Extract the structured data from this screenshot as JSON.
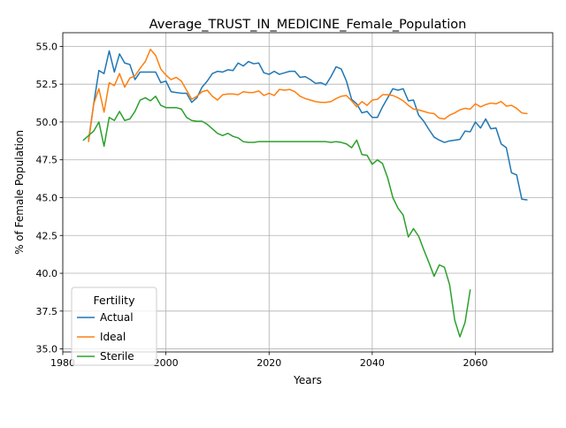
{
  "chart_data": {
    "type": "line",
    "title": "Average_TRUST_IN_MEDICINE_Female_Population",
    "xlabel": "Years",
    "ylabel": "% of Female Population",
    "xlim": [
      1980,
      2075
    ],
    "ylim": [
      34.8,
      55.9
    ],
    "xticks": [
      1980,
      2000,
      2020,
      2040,
      2060
    ],
    "yticks": [
      35.0,
      37.5,
      40.0,
      42.5,
      45.0,
      47.5,
      50.0,
      52.5,
      55.0
    ],
    "xtick_labels": [
      "1980",
      "2000",
      "2020",
      "2040",
      "2060"
    ],
    "ytick_labels": [
      "35.0",
      "37.5",
      "40.0",
      "42.5",
      "45.0",
      "47.5",
      "50.0",
      "52.5",
      "55.0"
    ],
    "grid": true,
    "legend": {
      "title": "Fertility",
      "placement": "lower-left"
    },
    "series": [
      {
        "name": "Actual",
        "color": "#1f77b4",
        "x": [
          1985,
          1986,
          1987,
          1988,
          1989,
          1990,
          1991,
          1992,
          1993,
          1994,
          1995,
          1996,
          1997,
          1998,
          1999,
          2000,
          2001,
          2002,
          2003,
          2004,
          2005,
          2006,
          2007,
          2008,
          2009,
          2010,
          2011,
          2012,
          2013,
          2014,
          2015,
          2016,
          2017,
          2018,
          2019,
          2020,
          2021,
          2022,
          2023,
          2024,
          2025,
          2026,
          2027,
          2028,
          2029,
          2030,
          2031,
          2032,
          2033,
          2034,
          2035,
          2036,
          2037,
          2038,
          2039,
          2040,
          2041,
          2042,
          2043,
          2044,
          2045,
          2046,
          2047,
          2048,
          2049,
          2050,
          2051,
          2052,
          2053,
          2054,
          2055,
          2056,
          2057,
          2058,
          2059,
          2060,
          2061,
          2062,
          2063,
          2064,
          2065,
          2066,
          2067,
          2068,
          2069,
          2070
        ],
        "values": [
          48.8,
          51.2,
          53.4,
          53.2,
          54.7,
          53.3,
          54.5,
          53.9,
          53.8,
          52.8,
          53.3,
          53.3,
          53.3,
          53.3,
          52.6,
          52.7,
          52.0,
          51.95,
          51.9,
          51.9,
          51.3,
          51.6,
          52.3,
          52.7,
          53.2,
          53.35,
          53.3,
          53.45,
          53.4,
          53.9,
          53.7,
          54.0,
          53.85,
          53.9,
          53.25,
          53.15,
          53.35,
          53.15,
          53.25,
          53.35,
          53.35,
          52.95,
          53.0,
          52.8,
          52.55,
          52.6,
          52.45,
          53.0,
          53.65,
          53.5,
          52.7,
          51.5,
          51.2,
          50.6,
          50.7,
          50.3,
          50.3,
          51.0,
          51.6,
          52.2,
          52.1,
          52.2,
          51.4,
          51.45,
          50.45,
          50.05,
          49.5,
          49.0,
          48.8,
          48.65,
          48.75,
          48.8,
          48.85,
          49.4,
          49.35,
          50.0,
          49.6,
          50.2,
          49.55,
          49.6,
          48.55,
          48.3,
          46.65,
          46.5,
          44.9,
          44.85
        ]
      },
      {
        "name": "Ideal",
        "color": "#ff7f0e",
        "x": [
          1985,
          1986,
          1987,
          1988,
          1989,
          1990,
          1991,
          1992,
          1993,
          1994,
          1995,
          1996,
          1997,
          1998,
          1999,
          2000,
          2001,
          2002,
          2003,
          2004,
          2005,
          2006,
          2007,
          2008,
          2009,
          2010,
          2011,
          2012,
          2013,
          2014,
          2015,
          2016,
          2017,
          2018,
          2019,
          2020,
          2021,
          2022,
          2023,
          2024,
          2025,
          2026,
          2027,
          2028,
          2029,
          2030,
          2031,
          2032,
          2033,
          2034,
          2035,
          2036,
          2037,
          2038,
          2039,
          2040,
          2041,
          2042,
          2043,
          2044,
          2045,
          2046,
          2047,
          2048,
          2049,
          2050,
          2051,
          2052,
          2053,
          2054,
          2055,
          2056,
          2057,
          2058,
          2059,
          2060,
          2061,
          2062,
          2063,
          2064,
          2065,
          2066,
          2067,
          2068,
          2069,
          2070
        ],
        "values": [
          48.7,
          51.2,
          52.2,
          50.65,
          52.6,
          52.4,
          53.2,
          52.3,
          52.9,
          53.05,
          53.55,
          54.0,
          54.8,
          54.4,
          53.5,
          53.1,
          52.8,
          52.95,
          52.7,
          52.1,
          51.5,
          51.7,
          52.0,
          52.1,
          51.7,
          51.45,
          51.8,
          51.85,
          51.85,
          51.8,
          52.0,
          51.95,
          51.95,
          52.05,
          51.75,
          51.9,
          51.75,
          52.15,
          52.1,
          52.15,
          52.0,
          51.7,
          51.55,
          51.45,
          51.35,
          51.3,
          51.3,
          51.35,
          51.55,
          51.7,
          51.75,
          51.4,
          51.0,
          51.35,
          51.1,
          51.45,
          51.5,
          51.8,
          51.8,
          51.75,
          51.6,
          51.4,
          51.1,
          50.85,
          50.8,
          50.7,
          50.6,
          50.55,
          50.25,
          50.2,
          50.45,
          50.6,
          50.8,
          50.9,
          50.85,
          51.2,
          51.0,
          51.15,
          51.25,
          51.2,
          51.35,
          51.05,
          51.1,
          50.9,
          50.6,
          50.55
        ]
      },
      {
        "name": "Sterile",
        "color": "#2ca02c",
        "x": [
          1984,
          1985,
          1986,
          1987,
          1988,
          1989,
          1990,
          1991,
          1992,
          1993,
          1994,
          1995,
          1996,
          1997,
          1998,
          1999,
          2000,
          2001,
          2002,
          2003,
          2004,
          2005,
          2006,
          2007,
          2008,
          2009,
          2010,
          2011,
          2012,
          2013,
          2014,
          2015,
          2016,
          2017,
          2018,
          2019,
          2020,
          2021,
          2022,
          2023,
          2024,
          2025,
          2026,
          2027,
          2028,
          2029,
          2030,
          2031,
          2032,
          2033,
          2034,
          2035,
          2036,
          2037,
          2038,
          2039,
          2040,
          2041,
          2042,
          2043,
          2044,
          2045,
          2046,
          2047,
          2048,
          2049,
          2050,
          2051,
          2052,
          2053,
          2054,
          2055,
          2056,
          2057,
          2058,
          2059
        ],
        "values": [
          48.8,
          49.1,
          49.4,
          50.0,
          48.4,
          50.3,
          50.1,
          50.7,
          50.1,
          50.2,
          50.7,
          51.45,
          51.6,
          51.4,
          51.7,
          51.1,
          50.95,
          50.95,
          50.95,
          50.85,
          50.3,
          50.1,
          50.05,
          50.05,
          49.85,
          49.55,
          49.25,
          49.1,
          49.25,
          49.05,
          48.95,
          48.7,
          48.65,
          48.65,
          48.7,
          48.7,
          48.7,
          48.7,
          48.7,
          48.7,
          48.7,
          48.7,
          48.7,
          48.7,
          48.7,
          48.7,
          48.7,
          48.7,
          48.65,
          48.7,
          48.65,
          48.55,
          48.3,
          48.8,
          47.85,
          47.8,
          47.2,
          47.5,
          47.25,
          46.3,
          45.0,
          44.3,
          43.85,
          42.4,
          42.95,
          42.45,
          41.55,
          40.7,
          39.8,
          40.55,
          40.4,
          39.25,
          36.9,
          35.8,
          36.75,
          38.9
        ]
      }
    ]
  }
}
